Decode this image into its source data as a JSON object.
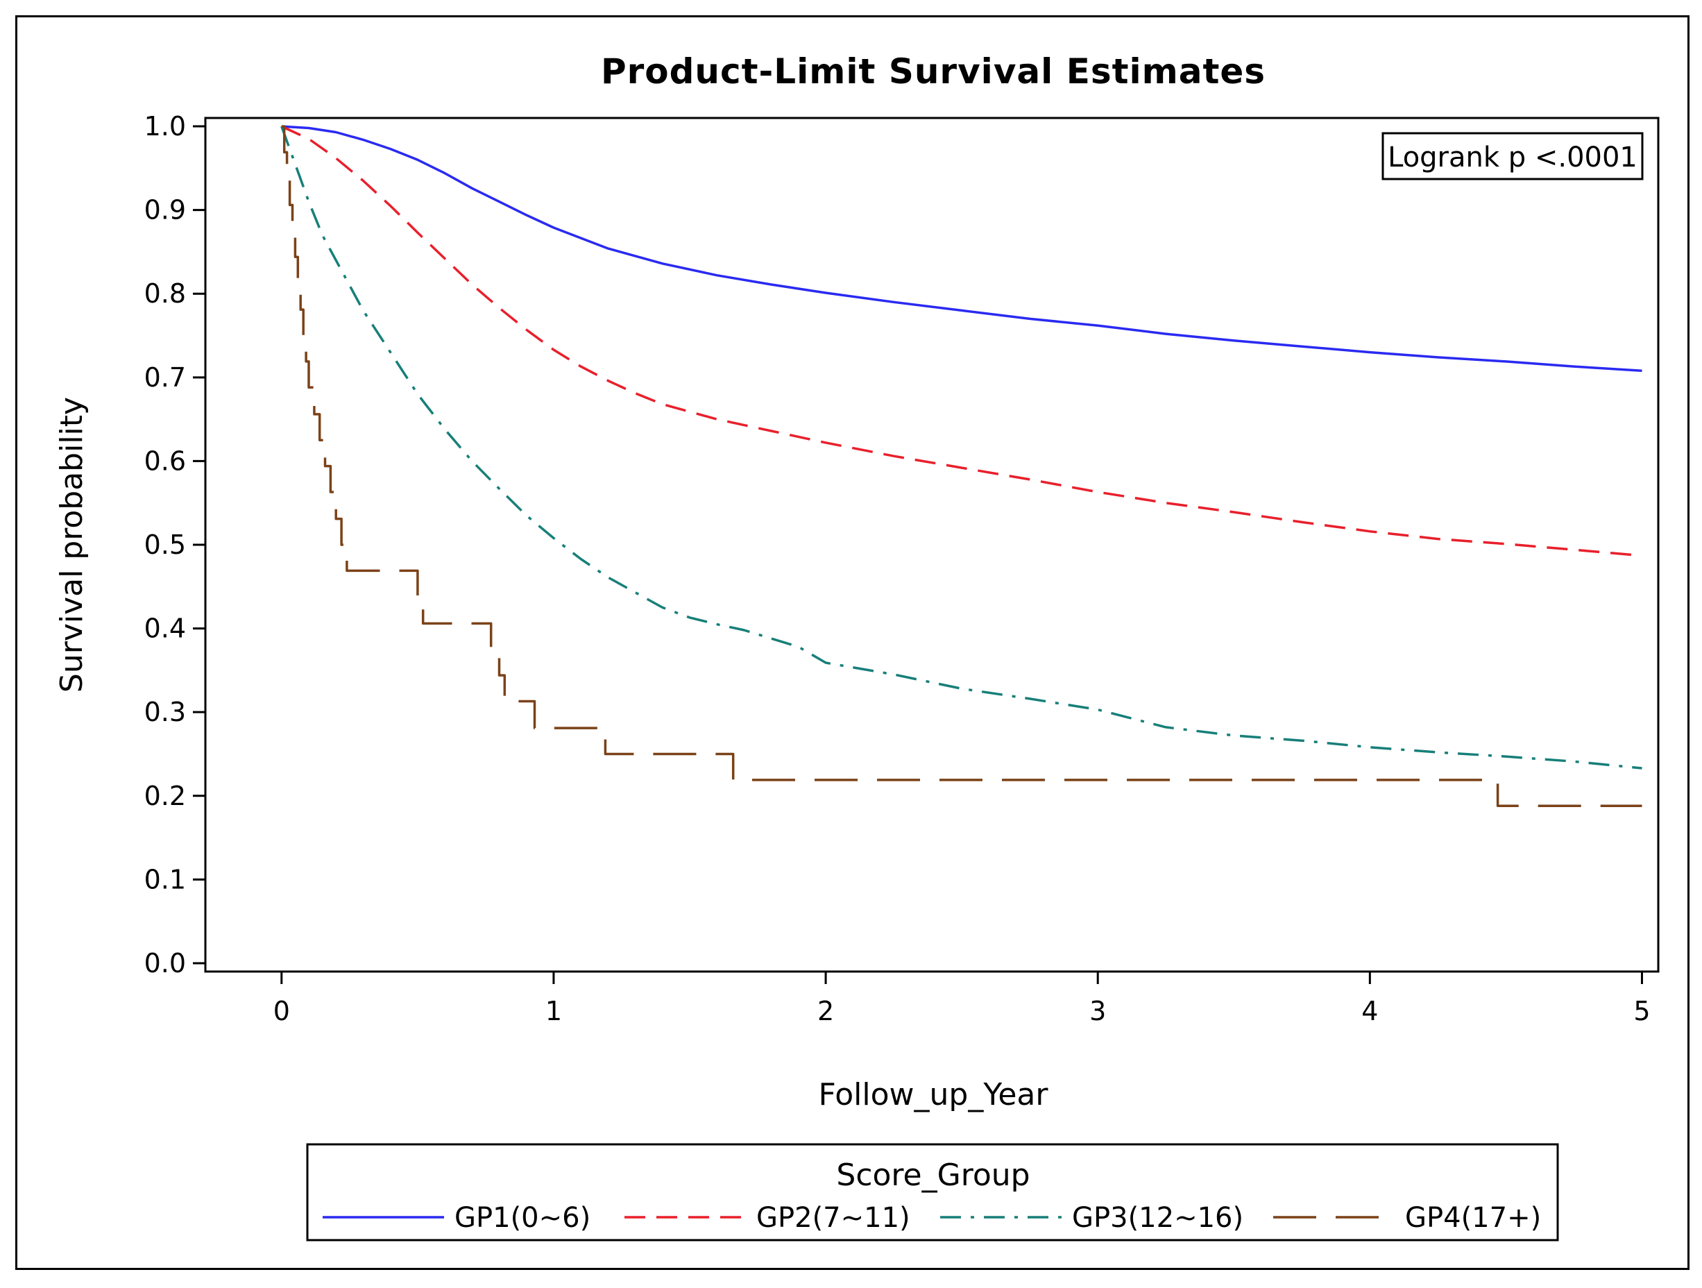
{
  "chart_data": {
    "type": "line",
    "title": "Product-Limit Survival Estimates",
    "xlabel": "Follow_up_Year",
    "ylabel": "Survival probability",
    "xlim": [
      -0.28,
      5.06
    ],
    "ylim": [
      -0.01,
      1.01
    ],
    "x_ticks": [
      "0",
      "1",
      "2",
      "3",
      "4",
      "5"
    ],
    "y_ticks": [
      "0.0",
      "0.1",
      "0.2",
      "0.3",
      "0.4",
      "0.5",
      "0.6",
      "0.7",
      "0.8",
      "0.9",
      "1.0"
    ],
    "annotation": "Logrank p <.0001",
    "legend_title": "Score_Group",
    "legend_position": "bottom",
    "grid": false,
    "series": [
      {
        "name": "GP1(0~6)",
        "color": "#2a2af2",
        "style": "solid",
        "step": false,
        "x": [
          0,
          0.1,
          0.2,
          0.3,
          0.4,
          0.5,
          0.6,
          0.7,
          0.8,
          0.9,
          1.0,
          1.2,
          1.4,
          1.6,
          1.8,
          2.0,
          2.25,
          2.5,
          2.75,
          3.0,
          3.25,
          3.5,
          3.75,
          4.0,
          4.25,
          4.5,
          4.75,
          5.0
        ],
        "y": [
          1.0,
          0.998,
          0.993,
          0.984,
          0.973,
          0.96,
          0.944,
          0.926,
          0.91,
          0.894,
          0.879,
          0.854,
          0.836,
          0.822,
          0.811,
          0.801,
          0.79,
          0.78,
          0.77,
          0.762,
          0.752,
          0.744,
          0.737,
          0.73,
          0.724,
          0.719,
          0.713,
          0.708
        ]
      },
      {
        "name": "GP2(7~11)",
        "color": "#e8202c",
        "style": "dashed",
        "step": false,
        "x": [
          0,
          0.1,
          0.2,
          0.3,
          0.4,
          0.5,
          0.6,
          0.7,
          0.8,
          0.9,
          1.0,
          1.1,
          1.2,
          1.3,
          1.4,
          1.5,
          1.6,
          1.8,
          2.0,
          2.25,
          2.5,
          2.75,
          3.0,
          3.25,
          3.5,
          3.75,
          4.0,
          4.25,
          4.5,
          4.75,
          5.0
        ],
        "y": [
          1.0,
          0.985,
          0.962,
          0.935,
          0.905,
          0.873,
          0.842,
          0.811,
          0.783,
          0.757,
          0.733,
          0.713,
          0.696,
          0.681,
          0.668,
          0.659,
          0.65,
          0.636,
          0.622,
          0.606,
          0.592,
          0.578,
          0.563,
          0.55,
          0.539,
          0.527,
          0.516,
          0.507,
          0.501,
          0.494,
          0.487
        ]
      },
      {
        "name": "GP3(12~16)",
        "color": "#177f79",
        "style": "dashdot",
        "step": false,
        "x": [
          0,
          0.05,
          0.1,
          0.15,
          0.2,
          0.3,
          0.4,
          0.5,
          0.6,
          0.7,
          0.8,
          0.9,
          1.0,
          1.1,
          1.2,
          1.3,
          1.4,
          1.5,
          1.6,
          1.7,
          1.8,
          1.9,
          2.0,
          2.25,
          2.5,
          2.75,
          3.0,
          3.25,
          3.5,
          3.75,
          4.0,
          4.25,
          4.5,
          4.75,
          5.0
        ],
        "y": [
          1.0,
          0.955,
          0.91,
          0.87,
          0.84,
          0.78,
          0.73,
          0.68,
          0.638,
          0.6,
          0.567,
          0.535,
          0.508,
          0.483,
          0.461,
          0.443,
          0.425,
          0.413,
          0.405,
          0.398,
          0.388,
          0.378,
          0.359,
          0.345,
          0.328,
          0.316,
          0.303,
          0.282,
          0.272,
          0.266,
          0.258,
          0.252,
          0.247,
          0.241,
          0.233
        ]
      },
      {
        "name": "GP4(17+)",
        "color": "#7b4218",
        "style": "longdash",
        "step": true,
        "x": [
          0,
          0.01,
          0.02,
          0.03,
          0.04,
          0.05,
          0.06,
          0.07,
          0.08,
          0.09,
          0.1,
          0.12,
          0.14,
          0.16,
          0.18,
          0.2,
          0.22,
          0.24,
          0.26,
          0.28,
          0.5,
          0.52,
          0.77,
          0.8,
          0.82,
          0.93,
          1.19,
          1.66,
          4.47,
          5.0
        ],
        "y": [
          1.0,
          0.969,
          0.938,
          0.906,
          0.875,
          0.844,
          0.813,
          0.781,
          0.75,
          0.719,
          0.688,
          0.656,
          0.625,
          0.594,
          0.563,
          0.531,
          0.5,
          0.469,
          0.469,
          0.469,
          0.438,
          0.406,
          0.375,
          0.344,
          0.313,
          0.281,
          0.25,
          0.219,
          0.188,
          0.188
        ]
      }
    ]
  }
}
